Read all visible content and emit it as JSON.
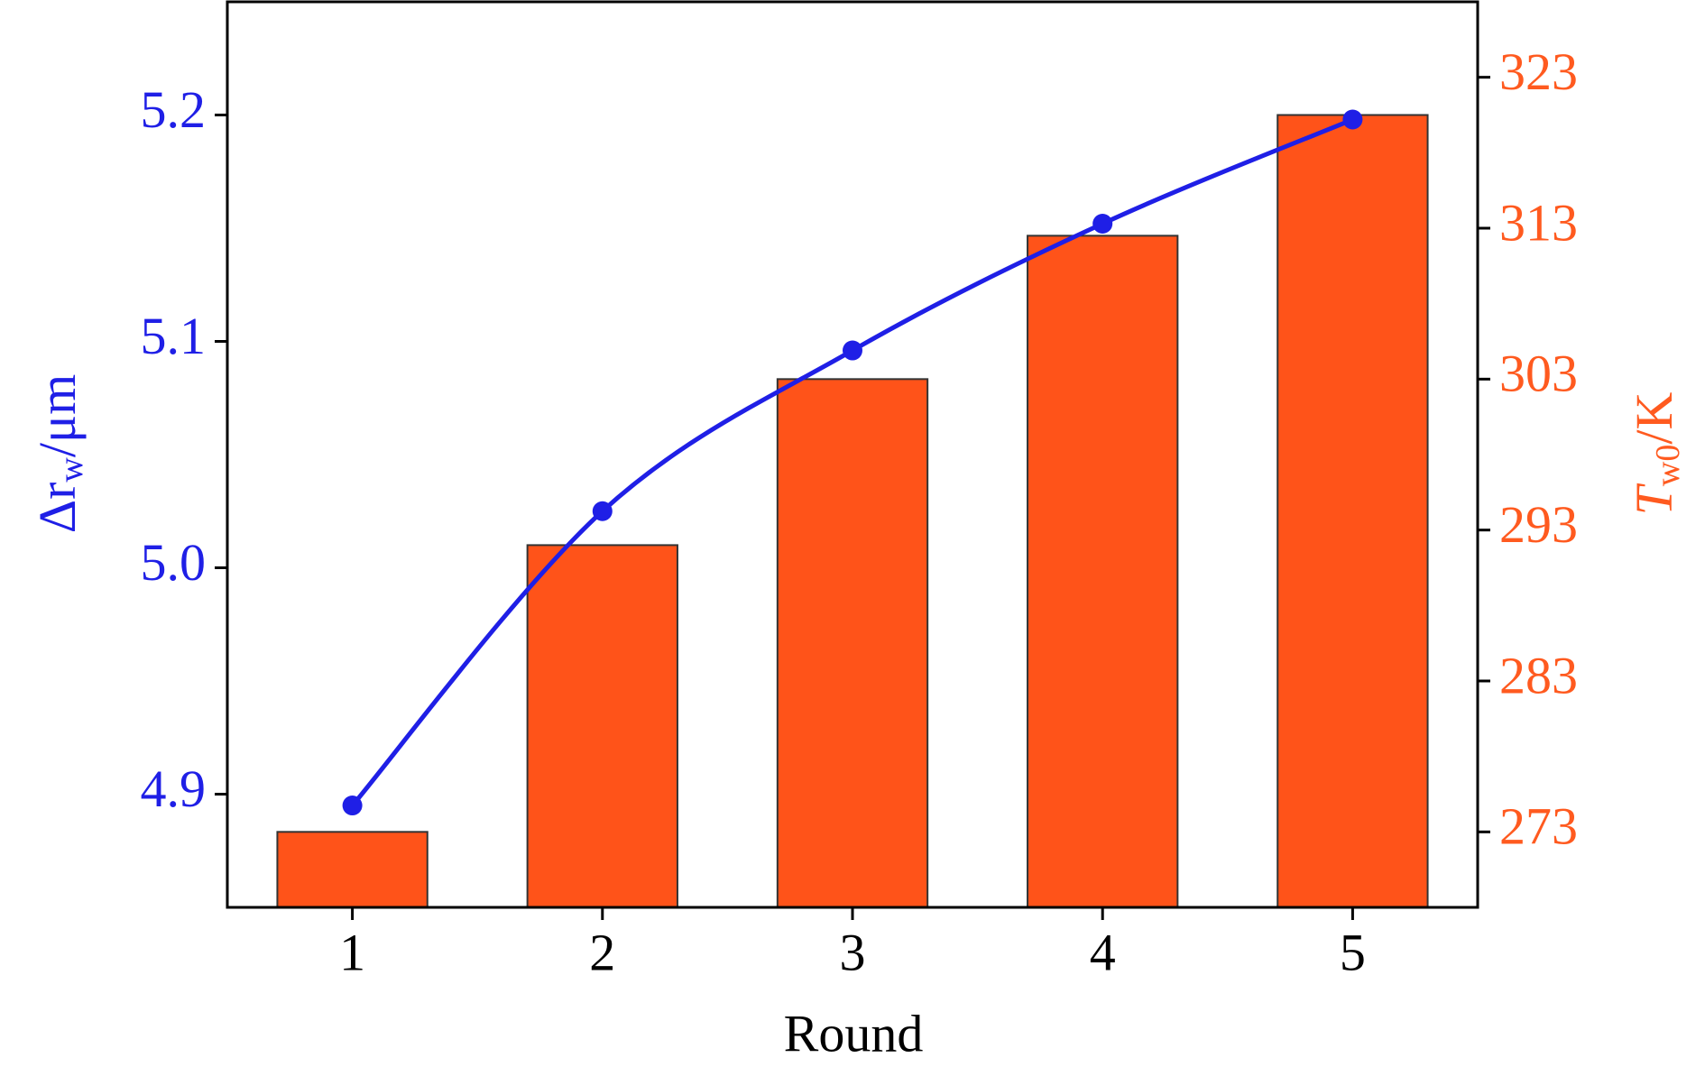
{
  "chart_data": {
    "type": "bar-line",
    "x_label": "Round",
    "y_label": {
      "main": "Δr",
      "sub": "w",
      "unit": "/μm"
    },
    "y2_label": {
      "main": "T",
      "sub": "w0",
      "unit": "/K"
    },
    "categories": [
      "1",
      "2",
      "3",
      "4",
      "5"
    ],
    "series": [
      {
        "type": "bar",
        "axis": "y2",
        "color": "#ff5319",
        "values": [
          273,
          292,
          303,
          312.5,
          320.5
        ]
      },
      {
        "type": "line",
        "axis": "y",
        "color": "#1f1fe6",
        "values": [
          4.895,
          5.025,
          5.096,
          5.152,
          5.198
        ]
      }
    ],
    "ylim": [
      4.85,
      5.25
    ],
    "yticks": [
      {
        "value": 4.9,
        "label": "4.9"
      },
      {
        "value": 5.0,
        "label": "5.0"
      },
      {
        "value": 5.1,
        "label": "5.1"
      },
      {
        "value": 5.2,
        "label": "5.2"
      }
    ],
    "y2lim": [
      268,
      328
    ],
    "y2ticks": [
      273,
      283,
      293,
      303,
      313,
      323
    ]
  }
}
